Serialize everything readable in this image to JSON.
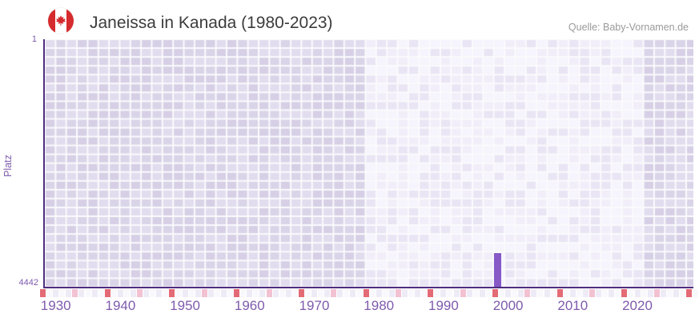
{
  "header": {
    "title": "Janeissa in Kanada (1980-2023)",
    "source": "Quelle: Baby-Vornamen.de",
    "flag_icon": "canada-flag-icon"
  },
  "chart_data": {
    "type": "bar",
    "title": "Janeissa in Kanada (1980-2023)",
    "xlabel": "",
    "ylabel": "Platz",
    "y_axis": {
      "top_label": "1",
      "bottom_label": "4442",
      "min": 1,
      "max": 4442,
      "inverted": true
    },
    "x_ticks": [
      1930,
      1940,
      1950,
      1960,
      1970,
      1980,
      1990,
      2000,
      2010,
      2020
    ],
    "x_range": [
      1928,
      2029
    ],
    "grid": "mosaic-tiles",
    "legend": "none",
    "highlight_band": {
      "start_year": 1978,
      "end_year": 2022
    },
    "series": [
      {
        "name": "Platz",
        "points": [
          {
            "year": 1998,
            "platz": 3840
          }
        ]
      }
    ],
    "ruler_marks": {
      "red_years": [
        1928,
        1938,
        1948,
        1958,
        1968,
        1978,
        1988,
        1998,
        2008,
        2018,
        2028
      ],
      "pink_years": [
        1933,
        1943,
        1953,
        1963,
        1973,
        1983,
        1993,
        2003,
        2013,
        2023
      ]
    },
    "colors": {
      "bar": "#8659c7",
      "axis_line": "#4e2e80",
      "tick_label": "#7e5bad",
      "ruler_red": "#e36b76",
      "ruler_pink": "#f2c2d2",
      "ruler_pale_even": "#eeebf7",
      "ruler_pale_odd": "#f9f8fc",
      "tile_dark": [
        "#dad4e8",
        "#e1dcee",
        "#d6cfe5"
      ],
      "tile_light": [
        "#f1eefa",
        "#e9e5f4",
        "#f6f4fc"
      ],
      "title_text": "#3c3c3c",
      "source_text": "#9a9a9a",
      "flag_red": "#d52b2e"
    }
  }
}
